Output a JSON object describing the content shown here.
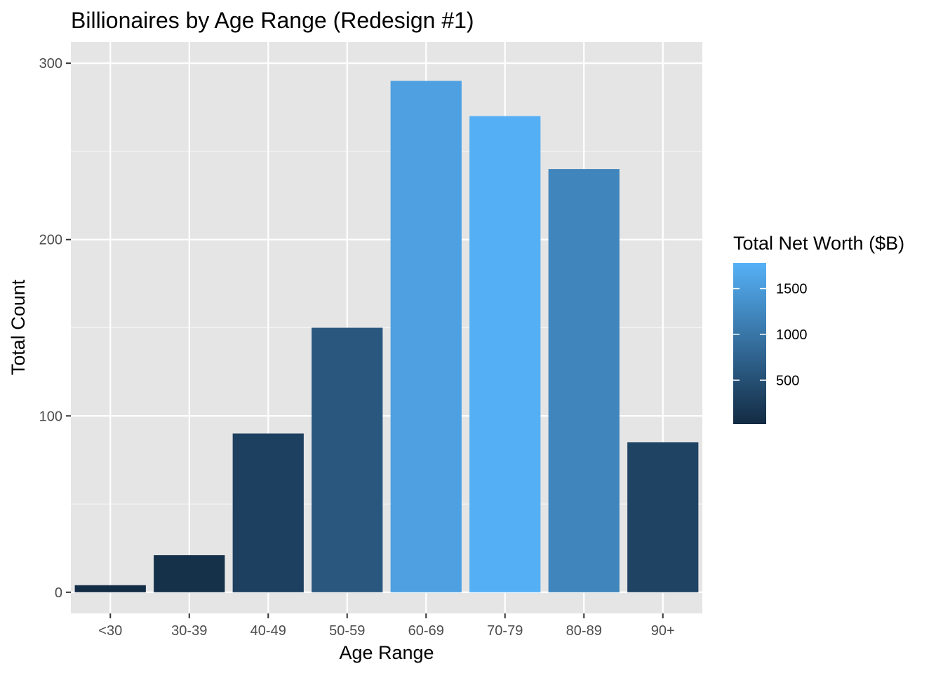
{
  "chart_data": {
    "type": "bar",
    "title": "Billionaires by Age Range (Redesign #1)",
    "xlabel": "Age Range",
    "ylabel": "Total Count",
    "categories": [
      "<30",
      "30-39",
      "40-49",
      "50-59",
      "60-69",
      "70-79",
      "80-89",
      "90+"
    ],
    "values": [
      4,
      21,
      90,
      150,
      290,
      270,
      240,
      85
    ],
    "fill_values": [
      50,
      80,
      300,
      600,
      1560,
      1760,
      1200,
      330
    ],
    "ylim": [
      -12,
      312
    ],
    "yticks": [
      0,
      100,
      200,
      300
    ],
    "grid": true,
    "legend": {
      "title": "Total Net Worth ($B)",
      "position": "right",
      "range": [
        20,
        1780
      ],
      "ticks": [
        500,
        1000,
        1500
      ],
      "tick_labels": [
        "500",
        "1000",
        "1500"
      ],
      "color_low": "#132B43",
      "color_high": "#56B1F7"
    },
    "colors": {
      "panel": "#E5E5E5",
      "grid_major": "#FFFFFF"
    }
  }
}
